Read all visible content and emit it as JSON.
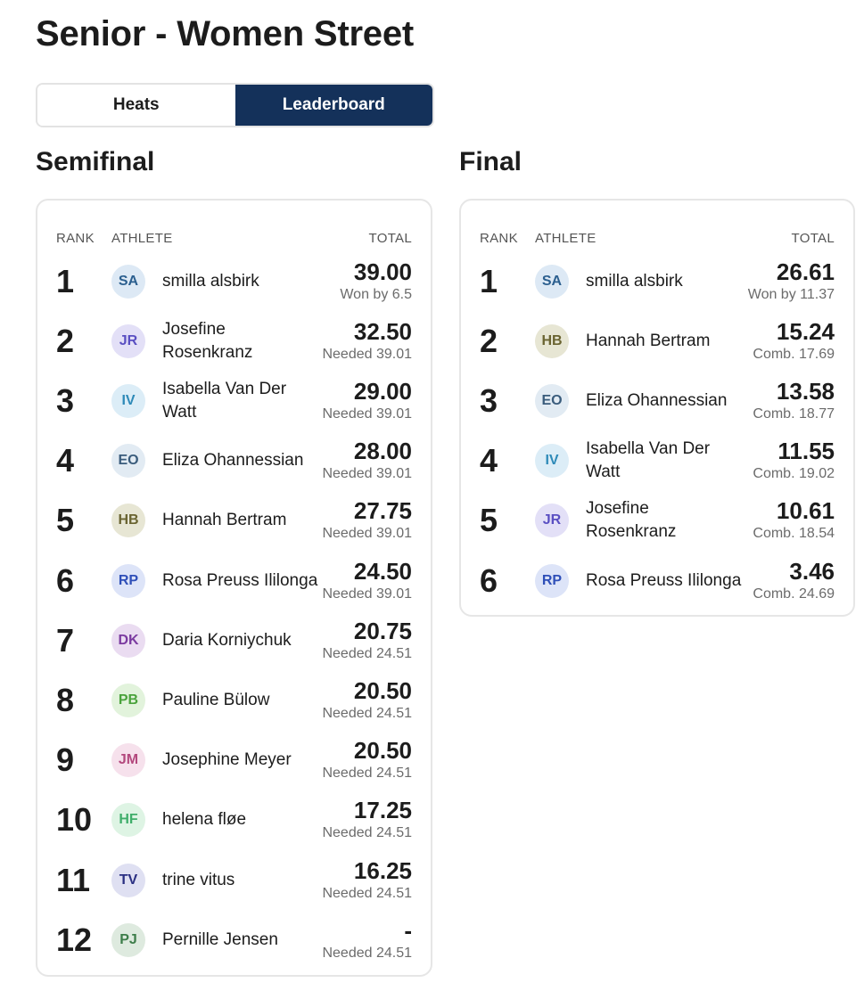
{
  "page": {
    "title": "Senior - Women Street"
  },
  "tabs": [
    {
      "label": "Heats",
      "active": false
    },
    {
      "label": "Leaderboard",
      "active": true
    }
  ],
  "columns": {
    "rank": "RANK",
    "athlete": "ATHLETE",
    "total": "TOTAL"
  },
  "semifinal": {
    "title": "Semifinal",
    "rows": [
      {
        "rank": "1",
        "initials": "SA",
        "name": "smilla alsbirk",
        "total": "39.00",
        "note": "Won by 6.5"
      },
      {
        "rank": "2",
        "initials": "JR",
        "name": "Josefine Rosenkranz",
        "total": "32.50",
        "note": "Needed 39.01"
      },
      {
        "rank": "3",
        "initials": "IV",
        "name": "Isabella Van Der Watt",
        "total": "29.00",
        "note": "Needed 39.01"
      },
      {
        "rank": "4",
        "initials": "EO",
        "name": "Eliza Ohannessian",
        "total": "28.00",
        "note": "Needed 39.01"
      },
      {
        "rank": "5",
        "initials": "HB",
        "name": "Hannah Bertram",
        "total": "27.75",
        "note": "Needed 39.01"
      },
      {
        "rank": "6",
        "initials": "RP",
        "name": "Rosa Preuss Ililonga",
        "total": "24.50",
        "note": "Needed 39.01"
      },
      {
        "rank": "7",
        "initials": "DK",
        "name": "Daria Korniychuk",
        "total": "20.75",
        "note": "Needed 24.51"
      },
      {
        "rank": "8",
        "initials": "PB",
        "name": "Pauline Bülow",
        "total": "20.50",
        "note": "Needed 24.51"
      },
      {
        "rank": "9",
        "initials": "JM",
        "name": "Josephine Meyer",
        "total": "20.50",
        "note": "Needed 24.51"
      },
      {
        "rank": "10",
        "initials": "HF",
        "name": "helena fløe",
        "total": "17.25",
        "note": "Needed 24.51"
      },
      {
        "rank": "11",
        "initials": "TV",
        "name": "trine vitus",
        "total": "16.25",
        "note": "Needed 24.51"
      },
      {
        "rank": "12",
        "initials": "PJ",
        "name": "Pernille Jensen",
        "total": "-",
        "note": "Needed 24.51"
      }
    ]
  },
  "final": {
    "title": "Final",
    "rows": [
      {
        "rank": "1",
        "initials": "SA",
        "name": "smilla alsbirk",
        "total": "26.61",
        "note": "Won by 11.37"
      },
      {
        "rank": "2",
        "initials": "HB",
        "name": "Hannah Bertram",
        "total": "15.24",
        "note": "Comb. 17.69"
      },
      {
        "rank": "3",
        "initials": "EO",
        "name": "Eliza Ohannessian",
        "total": "13.58",
        "note": "Comb. 18.77"
      },
      {
        "rank": "4",
        "initials": "IV",
        "name": "Isabella Van Der Watt",
        "total": "11.55",
        "note": "Comb. 19.02"
      },
      {
        "rank": "5",
        "initials": "JR",
        "name": "Josefine Rosenkranz",
        "total": "10.61",
        "note": "Comb. 18.54"
      },
      {
        "rank": "6",
        "initials": "RP",
        "name": "Rosa Preuss Ililonga",
        "total": "3.46",
        "note": "Comb. 24.69"
      }
    ]
  },
  "avatar_colors": {
    "SA": {
      "bg": "#dde9f5",
      "fg": "#2b5f8f"
    },
    "JR": {
      "bg": "#e3e0f7",
      "fg": "#5a4fc2"
    },
    "IV": {
      "bg": "#dcedf7",
      "fg": "#2e8ab8"
    },
    "EO": {
      "bg": "#e2ebf3",
      "fg": "#3a5c7c"
    },
    "HB": {
      "bg": "#e7e6d4",
      "fg": "#6a6431"
    },
    "RP": {
      "bg": "#dde4f8",
      "fg": "#2f4fb8"
    },
    "DK": {
      "bg": "#eadcf1",
      "fg": "#7b3aa0"
    },
    "PB": {
      "bg": "#e2f3dc",
      "fg": "#4aa33c"
    },
    "JM": {
      "bg": "#f6e1ec",
      "fg": "#b3487d"
    },
    "HF": {
      "bg": "#def4e4",
      "fg": "#3fae6a"
    },
    "TV": {
      "bg": "#dfe0f2",
      "fg": "#2a2f82"
    },
    "PJ": {
      "bg": "#deeadf",
      "fg": "#3d7d4a"
    }
  }
}
